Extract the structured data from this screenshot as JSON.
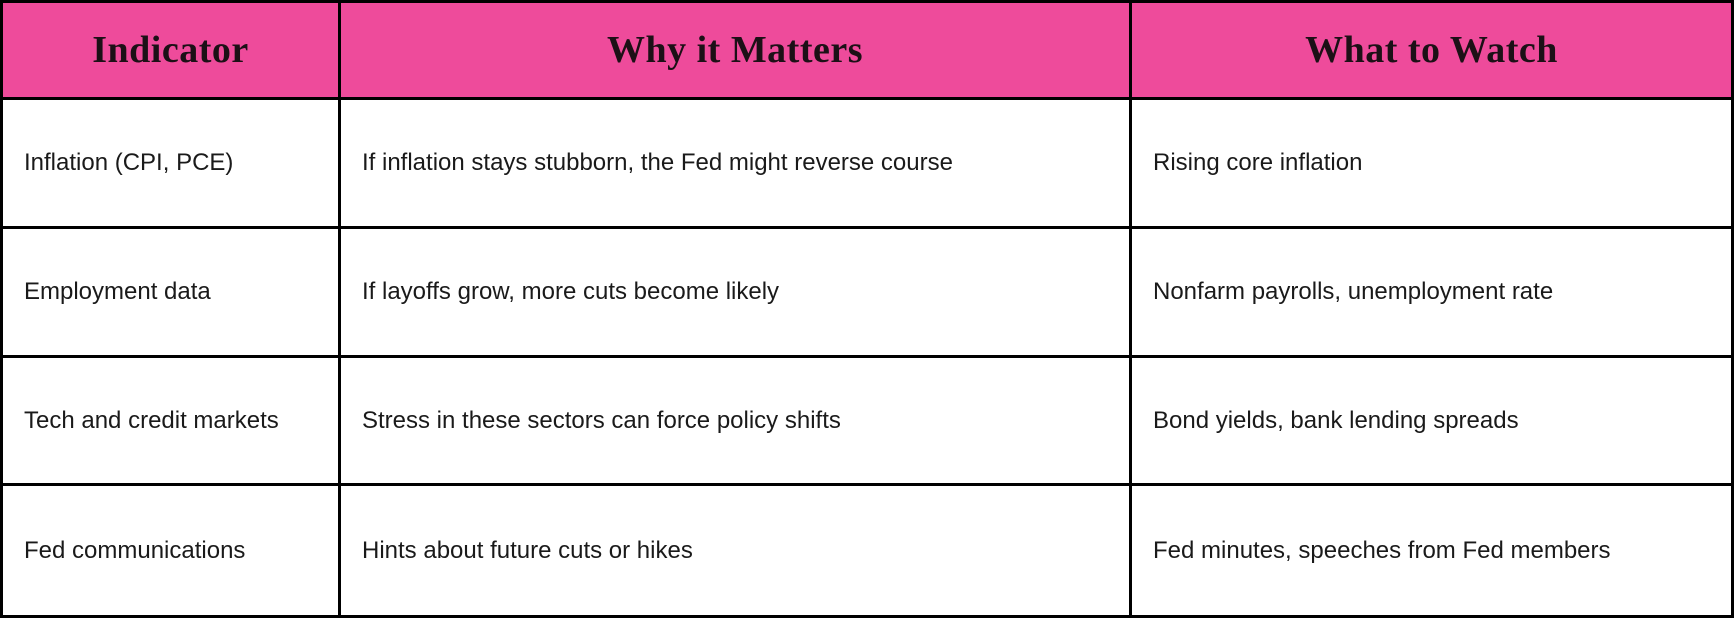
{
  "table": {
    "name": "fed-policy-indicators-table",
    "columns": [
      {
        "label": "Indicator"
      },
      {
        "label": "Why it Matters"
      },
      {
        "label": "What to Watch"
      }
    ],
    "rows": [
      {
        "indicator": "Inflation (CPI, PCE)",
        "why_it_matters": "If inflation stays stubborn, the Fed might reverse course",
        "what_to_watch": "Rising core inflation"
      },
      {
        "indicator": "Employment data",
        "why_it_matters": "If layoffs grow, more cuts become likely",
        "what_to_watch": "Nonfarm payrolls, unemployment rate"
      },
      {
        "indicator": "Tech and credit markets",
        "why_it_matters": "Stress in these sectors can force policy shifts",
        "what_to_watch": "Bond yields, bank lending spreads"
      },
      {
        "indicator": "Fed communications",
        "why_it_matters": "Hints about future cuts or hikes",
        "what_to_watch": "Fed minutes, speeches from Fed members"
      }
    ],
    "colors": {
      "header_bg": "#ee4b9b",
      "header_text": "#1c1016",
      "body_bg": "#ffffff",
      "body_text": "#1a1a1a",
      "border": "#000000"
    }
  }
}
